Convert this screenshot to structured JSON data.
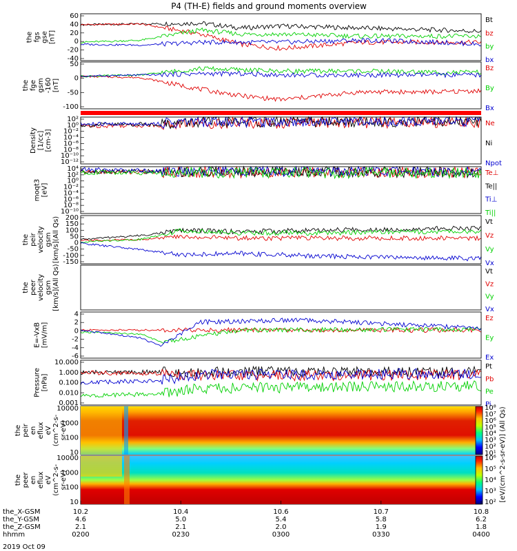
{
  "title": "P4 (TH-E) fields and ground moments overview",
  "date_label": "2019 Oct 09",
  "colors": {
    "black": "#000000",
    "red": "#e00000",
    "green": "#00d000",
    "blue": "#0000d0"
  },
  "x_axis": {
    "rows": [
      {
        "label": "the_X-GSM",
        "values": [
          "10.2",
          "10.4",
          "10.6",
          "10.7",
          "10.8"
        ]
      },
      {
        "label": "the_Y-GSM",
        "values": [
          "4.6",
          "5.0",
          "5.4",
          "5.8",
          "6.2"
        ]
      },
      {
        "label": "the_Z-GSM",
        "values": [
          "2.1",
          "2.1",
          "2.0",
          "1.9",
          "1.8"
        ]
      },
      {
        "label": "hhmm",
        "values": [
          "0200",
          "0230",
          "0300",
          "0330",
          "0400"
        ]
      }
    ]
  },
  "colorbar": {
    "label": "[eV/(cm^2-s-sr-eV)] (All Qs)",
    "ticks_top": [
      "10⁸",
      "10⁷",
      "10⁶",
      "10⁵",
      "10⁴",
      "10³",
      "10²",
      "10¹"
    ],
    "ticks_bottom": [
      "10⁶",
      "10⁵",
      "10⁴",
      "10³",
      "10²"
    ]
  },
  "chart_data": [
    {
      "type": "line",
      "ylabel": [
        "the",
        "fgs",
        "gse",
        "[nT]"
      ],
      "ylim": [
        -50,
        65
      ],
      "yticks": [
        "60",
        "40",
        "20",
        "0",
        "-20",
        "-40"
      ],
      "series": [
        {
          "name": "Bt",
          "color": "#000000",
          "x": [
            0,
            0.15,
            0.3,
            0.4,
            0.5,
            0.7,
            0.9,
            1
          ],
          "y": [
            38,
            40,
            42,
            30,
            35,
            30,
            25,
            22
          ]
        },
        {
          "name": "bz",
          "color": "#e00000",
          "x": [
            0,
            0.15,
            0.3,
            0.4,
            0.5,
            0.7,
            0.9,
            1
          ],
          "y": [
            38,
            40,
            15,
            -10,
            -20,
            -5,
            -5,
            -5
          ]
        },
        {
          "name": "by",
          "color": "#00d000",
          "x": [
            0,
            0.15,
            0.3,
            0.4,
            0.5,
            0.7,
            0.9,
            1
          ],
          "y": [
            -5,
            0,
            25,
            15,
            15,
            10,
            10,
            10
          ]
        },
        {
          "name": "bx",
          "color": "#0000d0",
          "x": [
            0,
            0.15,
            0.3,
            0.4,
            0.5,
            0.7,
            0.9,
            1
          ],
          "y": [
            -10,
            -12,
            -5,
            -5,
            -5,
            0,
            -5,
            -10
          ]
        }
      ]
    },
    {
      "type": "line",
      "ylabel": [
        "the",
        "fge",
        "gsm",
        "-160",
        "[nT]"
      ],
      "ylim": [
        -125,
        55
      ],
      "yticks": [
        "50",
        "0",
        "-50",
        "-100"
      ],
      "series": [
        {
          "name": "Bz",
          "color": "#e00000",
          "x": [
            0,
            0.15,
            0.3,
            0.4,
            0.5,
            0.7,
            0.9,
            1
          ],
          "y": [
            0,
            -5,
            -50,
            -75,
            -90,
            -60,
            -60,
            -55
          ]
        },
        {
          "name": "By",
          "color": "#00d000",
          "x": [
            0,
            0.15,
            0.3,
            0.4,
            0.5,
            0.7,
            0.9,
            1
          ],
          "y": [
            0,
            5,
            30,
            25,
            20,
            20,
            15,
            15
          ]
        },
        {
          "name": "Bx",
          "color": "#0000d0",
          "x": [
            0,
            0.15,
            0.3,
            0.4,
            0.5,
            0.7,
            0.9,
            1
          ],
          "y": [
            0,
            5,
            10,
            10,
            5,
            5,
            5,
            5
          ]
        }
      ]
    },
    {
      "type": "line",
      "scale": "log",
      "ylabel": [
        "Density",
        "[1/cc]",
        "[cm-3]"
      ],
      "ylim": [
        -13,
        3
      ],
      "yticks": [
        "10²",
        "10⁰",
        "10⁻²",
        "10⁻⁴",
        "10⁻⁶",
        "10⁻⁸",
        "10⁻¹⁰",
        "10⁻¹²"
      ],
      "series": [
        {
          "name": "Ne",
          "color": "#e00000",
          "x": [
            0,
            0.2,
            0.3,
            1
          ],
          "y": [
            0,
            0.3,
            1,
            1.2
          ]
        },
        {
          "name": "Ni",
          "color": "#000000",
          "x": [
            0,
            0.2,
            0.3,
            1
          ],
          "y": [
            0.3,
            0.6,
            1.3,
            1.5
          ]
        },
        {
          "name": "Npot",
          "color": "#0000d0",
          "x": [
            0,
            0.2,
            0.3,
            1
          ],
          "y": [
            0.5,
            0.8,
            1.5,
            1.7
          ]
        }
      ]
    },
    {
      "type": "line",
      "scale": "log",
      "ylabel": [
        "moqt3",
        "[eV]"
      ],
      "ylim": [
        -11,
        5
      ],
      "yticks": [
        "10⁴",
        "10²",
        "10⁰",
        "10⁻²",
        "10⁻⁴",
        "10⁻⁶",
        "10⁻⁸",
        "10⁻¹⁰"
      ],
      "series": [
        {
          "name": "Te⊥",
          "color": "#e00000",
          "x": [
            0,
            1
          ],
          "y": [
            3.2,
            3.0
          ]
        },
        {
          "name": "Te||",
          "color": "#000000",
          "x": [
            0,
            1
          ],
          "y": [
            3.4,
            3.2
          ]
        },
        {
          "name": "Ti⊥",
          "color": "#0000d0",
          "x": [
            0,
            0.2,
            1
          ],
          "y": [
            4,
            3.6,
            3.5
          ]
        },
        {
          "name": "Ti||",
          "color": "#00d000",
          "x": [
            0,
            1
          ],
          "y": [
            3.0,
            2.9
          ]
        }
      ]
    },
    {
      "type": "line",
      "ylabel": [
        "the",
        "peir",
        "velocity",
        "gsm",
        "[km/s](All Qs)"
      ],
      "ylim": [
        -160,
        215
      ],
      "yticks": [
        "200",
        "150",
        "100",
        "50",
        "0",
        "-50",
        "-100",
        "-150"
      ],
      "series": [
        {
          "name": "Vt",
          "color": "#000000",
          "x": [
            0,
            0.15,
            0.25,
            0.4,
            0.6,
            0.8,
            1
          ],
          "y": [
            30,
            60,
            100,
            90,
            100,
            110,
            120
          ]
        },
        {
          "name": "Vz",
          "color": "#e00000",
          "x": [
            0,
            0.15,
            0.25,
            0.4,
            0.6,
            0.8,
            1
          ],
          "y": [
            20,
            30,
            50,
            40,
            40,
            40,
            40
          ]
        },
        {
          "name": "Vy",
          "color": "#00d000",
          "x": [
            0,
            0.15,
            0.25,
            0.4,
            0.6,
            0.8,
            1
          ],
          "y": [
            10,
            30,
            100,
            80,
            80,
            90,
            90
          ]
        },
        {
          "name": "Vx",
          "color": "#0000d0",
          "x": [
            0,
            0.15,
            0.25,
            0.4,
            0.6,
            0.8,
            1
          ],
          "y": [
            0,
            -50,
            -90,
            -80,
            -100,
            -110,
            -120
          ]
        }
      ]
    },
    {
      "type": "line",
      "ylabel": [
        "the",
        "peer",
        "velocity",
        "gsm",
        "[km/s](All Qs)"
      ],
      "ylim": [
        -160,
        215
      ],
      "yticks": [],
      "series": [
        {
          "name": "Vt",
          "color": "#000000",
          "x": [],
          "y": []
        },
        {
          "name": "Vz",
          "color": "#e00000",
          "x": [],
          "y": []
        },
        {
          "name": "Vy",
          "color": "#00d000",
          "x": [],
          "y": []
        },
        {
          "name": "Vx",
          "color": "#0000d0",
          "x": [],
          "y": []
        }
      ]
    },
    {
      "type": "line",
      "ylabel": [
        "E=-VxB",
        "[mV/m]"
      ],
      "ylim": [
        -7,
        4.5
      ],
      "yticks": [
        "4",
        "2",
        "0",
        "-2",
        "-4",
        "-6"
      ],
      "series": [
        {
          "name": "Ez",
          "color": "#e00000",
          "x": [
            0,
            0.2,
            0.4,
            1
          ],
          "y": [
            0,
            0,
            0,
            0
          ]
        },
        {
          "name": "Ey",
          "color": "#00d000",
          "x": [
            0,
            0.15,
            0.2,
            0.4,
            1
          ],
          "y": [
            -0.5,
            -1,
            -3,
            0,
            0.2
          ]
        },
        {
          "name": "Ex",
          "color": "#0000d0",
          "x": [
            0,
            0.15,
            0.2,
            0.3,
            0.55,
            1
          ],
          "y": [
            0,
            -2,
            -4,
            2,
            2.5,
            0.5
          ]
        }
      ]
    },
    {
      "type": "line",
      "scale": "log",
      "ylabel": [
        "Pressure",
        "[nPa]"
      ],
      "ylim": [
        -3,
        1
      ],
      "yticks": [
        "10.000",
        "1.000",
        "0.100",
        "0.010",
        "0.001"
      ],
      "series": [
        {
          "name": "Pt",
          "color": "#000000",
          "x": [
            0,
            0.2,
            1
          ],
          "y": [
            -0.1,
            -0.05,
            0
          ]
        },
        {
          "name": "Pb",
          "color": "#e00000",
          "x": [
            0,
            0.2,
            0.3,
            1
          ],
          "y": [
            -0.1,
            -0.2,
            -0.4,
            -0.3
          ]
        },
        {
          "name": "Pe",
          "color": "#00d000",
          "x": [
            0,
            0.2,
            0.3,
            1
          ],
          "y": [
            -2.2,
            -2,
            -1.5,
            -1.3
          ]
        },
        {
          "name": "Pi",
          "color": "#0000d0",
          "x": [
            0,
            0.2,
            0.3,
            1
          ],
          "y": [
            -1,
            -0.8,
            -0.3,
            -0.2
          ]
        }
      ]
    },
    {
      "type": "heatmap",
      "ylabel": [
        "the",
        "peir",
        "en",
        "eflux",
        "eV",
        "(cm^2-s-",
        "sr-eV)"
      ],
      "ylim": [
        1,
        4.2
      ],
      "yticks": [
        "10000",
        "1000",
        "100",
        "10"
      ]
    },
    {
      "type": "heatmap",
      "ylabel": [
        "the",
        "peer",
        "en",
        "eflux",
        "eV",
        "(cm^2-s-",
        "sr-eV)"
      ],
      "ylim": [
        1,
        4.2
      ],
      "yticks": [
        "10000",
        "1000",
        "100",
        "10"
      ]
    }
  ]
}
